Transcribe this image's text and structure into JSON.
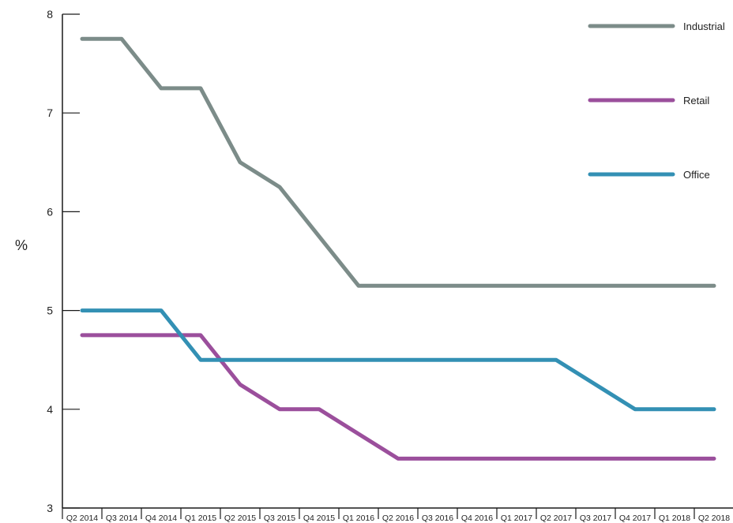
{
  "chart_data": {
    "type": "line",
    "title": "",
    "xlabel": "",
    "ylabel": "%",
    "ylim": [
      3,
      8
    ],
    "yticks": [
      3,
      4,
      5,
      6,
      7,
      8
    ],
    "grid": false,
    "legend_position": "top-right",
    "categories": [
      "Q2 2014",
      "Q3 2014",
      "Q4 2014",
      "Q1 2015",
      "Q2 2015",
      "Q3 2015",
      "Q4 2015",
      "Q1 2016",
      "Q2 2016",
      "Q3 2016",
      "Q4 2016",
      "Q1 2017",
      "Q2 2017",
      "Q3 2017",
      "Q4 2017",
      "Q1 2018",
      "Q2 2018"
    ],
    "series": [
      {
        "name": "Industrial",
        "color": "#7c8c89",
        "values": [
          7.75,
          7.75,
          7.25,
          7.25,
          6.5,
          6.25,
          5.75,
          5.25,
          5.25,
          5.25,
          5.25,
          5.25,
          5.25,
          5.25,
          5.25,
          5.25,
          5.25
        ]
      },
      {
        "name": "Retail",
        "color": "#9b4f9c",
        "values": [
          4.75,
          4.75,
          4.75,
          4.75,
          4.25,
          4.0,
          4.0,
          3.75,
          3.5,
          3.5,
          3.5,
          3.5,
          3.5,
          3.5,
          3.5,
          3.5,
          3.5
        ]
      },
      {
        "name": "Office",
        "color": "#3390b4",
        "values": [
          5.0,
          5.0,
          5.0,
          4.5,
          4.5,
          4.5,
          4.5,
          4.5,
          4.5,
          4.5,
          4.5,
          4.5,
          4.5,
          4.25,
          4.0,
          4.0,
          4.0
        ]
      }
    ]
  }
}
